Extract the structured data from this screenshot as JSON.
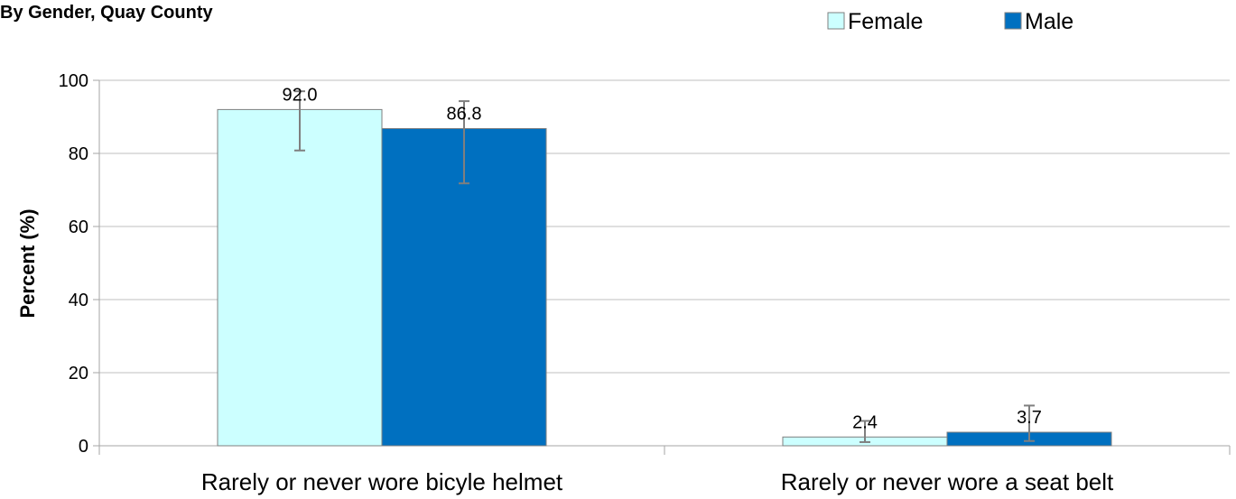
{
  "chart_data": {
    "type": "bar",
    "title": "By Gender, Quay County",
    "ylabel": "Percent (%)",
    "xlabel": "",
    "ylim": [
      0,
      100
    ],
    "yticks": [
      0,
      20,
      40,
      60,
      80,
      100
    ],
    "categories": [
      "Rarely or never wore bicyle helmet",
      "Rarely or never wore a seat belt"
    ],
    "series": [
      {
        "name": "Female",
        "color": "#CCFFFF",
        "values": [
          92.0,
          2.4
        ],
        "labels": [
          "92.0",
          "2.4"
        ],
        "error_low": [
          80.8,
          1.0
        ],
        "error_high": [
          97.0,
          6.8
        ]
      },
      {
        "name": "Male",
        "color": "#0070C0",
        "values": [
          86.8,
          3.7
        ],
        "labels": [
          "86.8",
          "3.7"
        ],
        "error_low": [
          71.8,
          1.3
        ],
        "error_high": [
          94.3,
          11.0
        ]
      }
    ],
    "grid": true,
    "legend": "top-right"
  }
}
